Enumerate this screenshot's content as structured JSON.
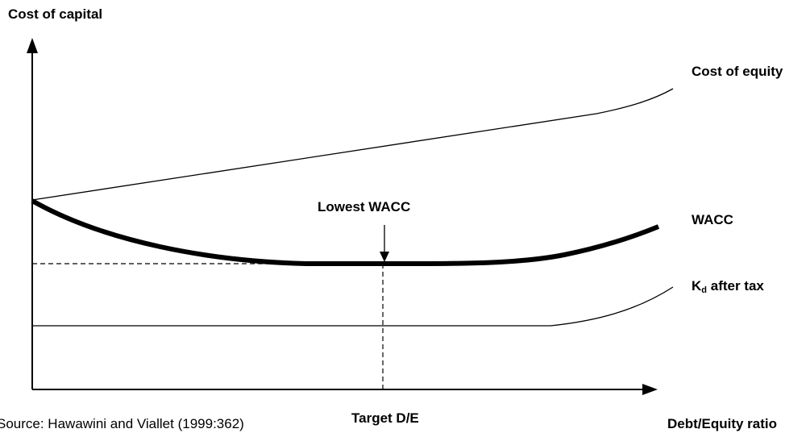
{
  "y_axis_label": "Cost of capital",
  "x_axis_label": "Debt/Equity ratio",
  "target_label": "Target D/E",
  "lowest_label": "Lowest WACC",
  "source": "Source: Hawawini and Viallet (1999:362)",
  "curves": {
    "cost_of_equity": "Cost of equity",
    "wacc": "WACC",
    "kd_main": "K",
    "kd_sub": "d",
    "kd_tail": " after tax"
  }
}
